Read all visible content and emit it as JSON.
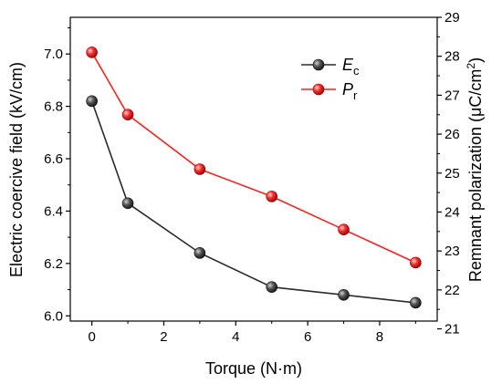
{
  "chart_data": {
    "type": "line",
    "x": [
      0,
      1,
      3,
      5,
      7,
      9
    ],
    "xlabel": "Torque (N·m)",
    "xlim": [
      -0.6,
      9.6
    ],
    "xticks": [
      "0",
      "2",
      "4",
      "6",
      "8"
    ],
    "ylabel_left": "Electric coercive field (kV/cm)",
    "ylim_left": [
      5.98,
      7.14
    ],
    "yticks_left": [
      "6.0",
      "6.2",
      "6.4",
      "6.6",
      "6.8",
      "7.0"
    ],
    "ylabel_right_main": "Remnant polarization (μC/cm",
    "ylabel_right_sup": "2",
    "ylabel_right_tail": ")",
    "ylim_right": [
      21.2,
      29
    ],
    "yticks_right": [
      "21",
      "22",
      "23",
      "24",
      "25",
      "26",
      "27",
      "28",
      "29"
    ],
    "legend_position": "top-right",
    "series": [
      {
        "name": "E",
        "subscript": "c",
        "axis": "left",
        "color": "#2b2b2b",
        "marker_color": "#3a3a3a",
        "values": [
          6.82,
          6.43,
          6.24,
          6.11,
          6.08,
          6.05
        ]
      },
      {
        "name": "P",
        "subscript": "r",
        "axis": "right",
        "color": "#ff2020",
        "marker_color": "#e82020",
        "values": [
          28.1,
          26.5,
          25.1,
          24.4,
          23.55,
          22.7
        ]
      }
    ]
  }
}
